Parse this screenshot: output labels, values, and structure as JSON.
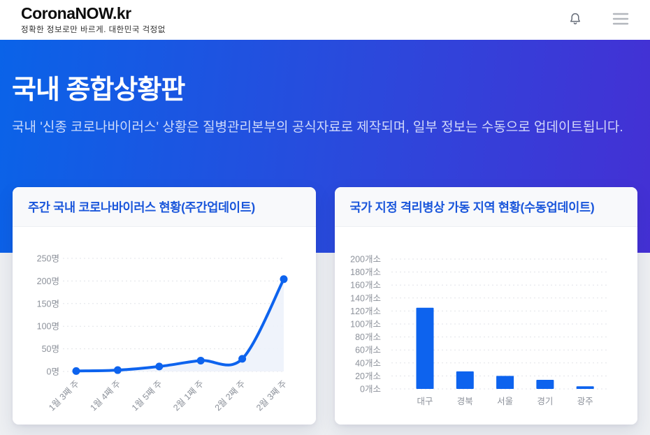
{
  "header": {
    "logo": "CoronaNOW.kr",
    "tagline": "정확한 정보로만 바르게. 대한민국 걱정없",
    "bell_icon": "bell-icon",
    "menu_icon": "hamburger-menu-icon"
  },
  "hero": {
    "title": "국내 종합상황판",
    "subtitle": "국내 '신종 코로나바이러스' 상황은 질병관리본부의 공식자료로 제작되며, 일부 정보는 수동으로 업데이트됩니다.",
    "gradient_from": "#0a63e8",
    "gradient_to": "#4430d4"
  },
  "colors": {
    "accent_blue": "#0d63ee",
    "card_title_blue": "#1a56db",
    "axis_gray": "#8d929b",
    "grid_gray": "#e1e3e8",
    "area_fill": "#edf2fb"
  },
  "chart_data": [
    {
      "type": "line",
      "title": "주간 국내 코로나바이러스 현황(주간업데이트)",
      "categories": [
        "1월 3째 주",
        "1월 4째 주",
        "1월 5째 주",
        "2월 1째 주",
        "2월 2째 주",
        "2월 3째 주"
      ],
      "values": [
        1,
        3,
        11,
        24,
        28,
        204
      ],
      "unit": "명",
      "yticks": [
        0,
        50,
        100,
        150,
        200,
        250
      ],
      "ylim": [
        0,
        250
      ],
      "line_color": "#0d63ee",
      "area_fill": "#edf2fb",
      "grid": "dashed-horizontal",
      "legend": "none"
    },
    {
      "type": "bar",
      "title": "국가 지정 격리병상 가동 지역 현황(수동업데이트)",
      "categories": [
        "대구",
        "경북",
        "서울",
        "경기",
        "광주"
      ],
      "values": [
        125,
        27,
        20,
        14,
        4
      ],
      "unit": "개소",
      "yticks": [
        0,
        20,
        40,
        60,
        80,
        100,
        120,
        140,
        160,
        180,
        200
      ],
      "ylim": [
        0,
        200
      ],
      "bar_color": "#0d63ee",
      "grid": "dashed-horizontal",
      "legend": "none"
    }
  ]
}
